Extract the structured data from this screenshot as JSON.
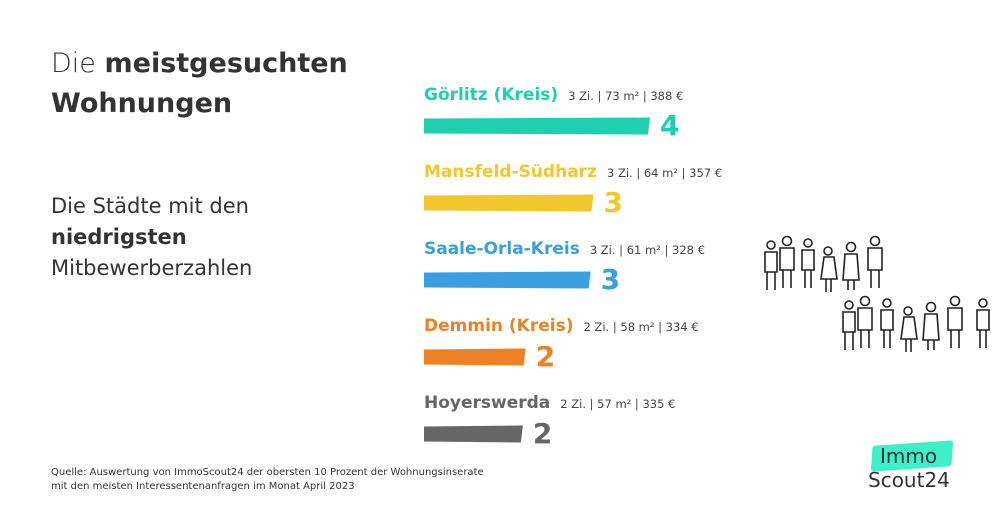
{
  "title": {
    "line1_regular": "Die",
    "line1_bold": "meistgesuchten",
    "line2_bold": "Wohnungen"
  },
  "subtitle": {
    "line1": "Die Städte mit den",
    "line2_bold": "niedrigsten",
    "line3": "Mitbewerberzahlen"
  },
  "footnote": {
    "line1": "Quelle: Auswertung von ImmoScout24 der obersten 10 Prozent der Wohnungsinserate",
    "line2": "mit den meisten Interessentenanfragen im Monat April 2023"
  },
  "logo": {
    "immo": "Immo",
    "scout": "Scout24",
    "badge_color": "#3df0c7"
  },
  "chart_data": {
    "type": "bar",
    "orientation": "horizontal",
    "categories": [
      "Görlitz (Kreis)",
      "Mansfeld-Südharz",
      "Saale-Orla-Kreis",
      "Demmin (Kreis)",
      "Hoyerswerda"
    ],
    "details": [
      "3 Zi. | 73 m² | 388 €",
      "3 Zi. | 64 m² | 357 €",
      "3 Zi. | 61 m² | 328 €",
      "2 Zi. | 58 m² | 334 €",
      "2 Zi. | 57 m² | 335 €"
    ],
    "values": [
      4,
      3,
      3,
      2,
      2
    ],
    "bar_lengths": [
      4.0,
      3.0,
      2.95,
      1.8,
      1.75
    ],
    "colors": [
      "#1fcfb0",
      "#f2c62e",
      "#3a9fdf",
      "#ec8224",
      "#666666"
    ],
    "grid": false,
    "legend": "none"
  }
}
